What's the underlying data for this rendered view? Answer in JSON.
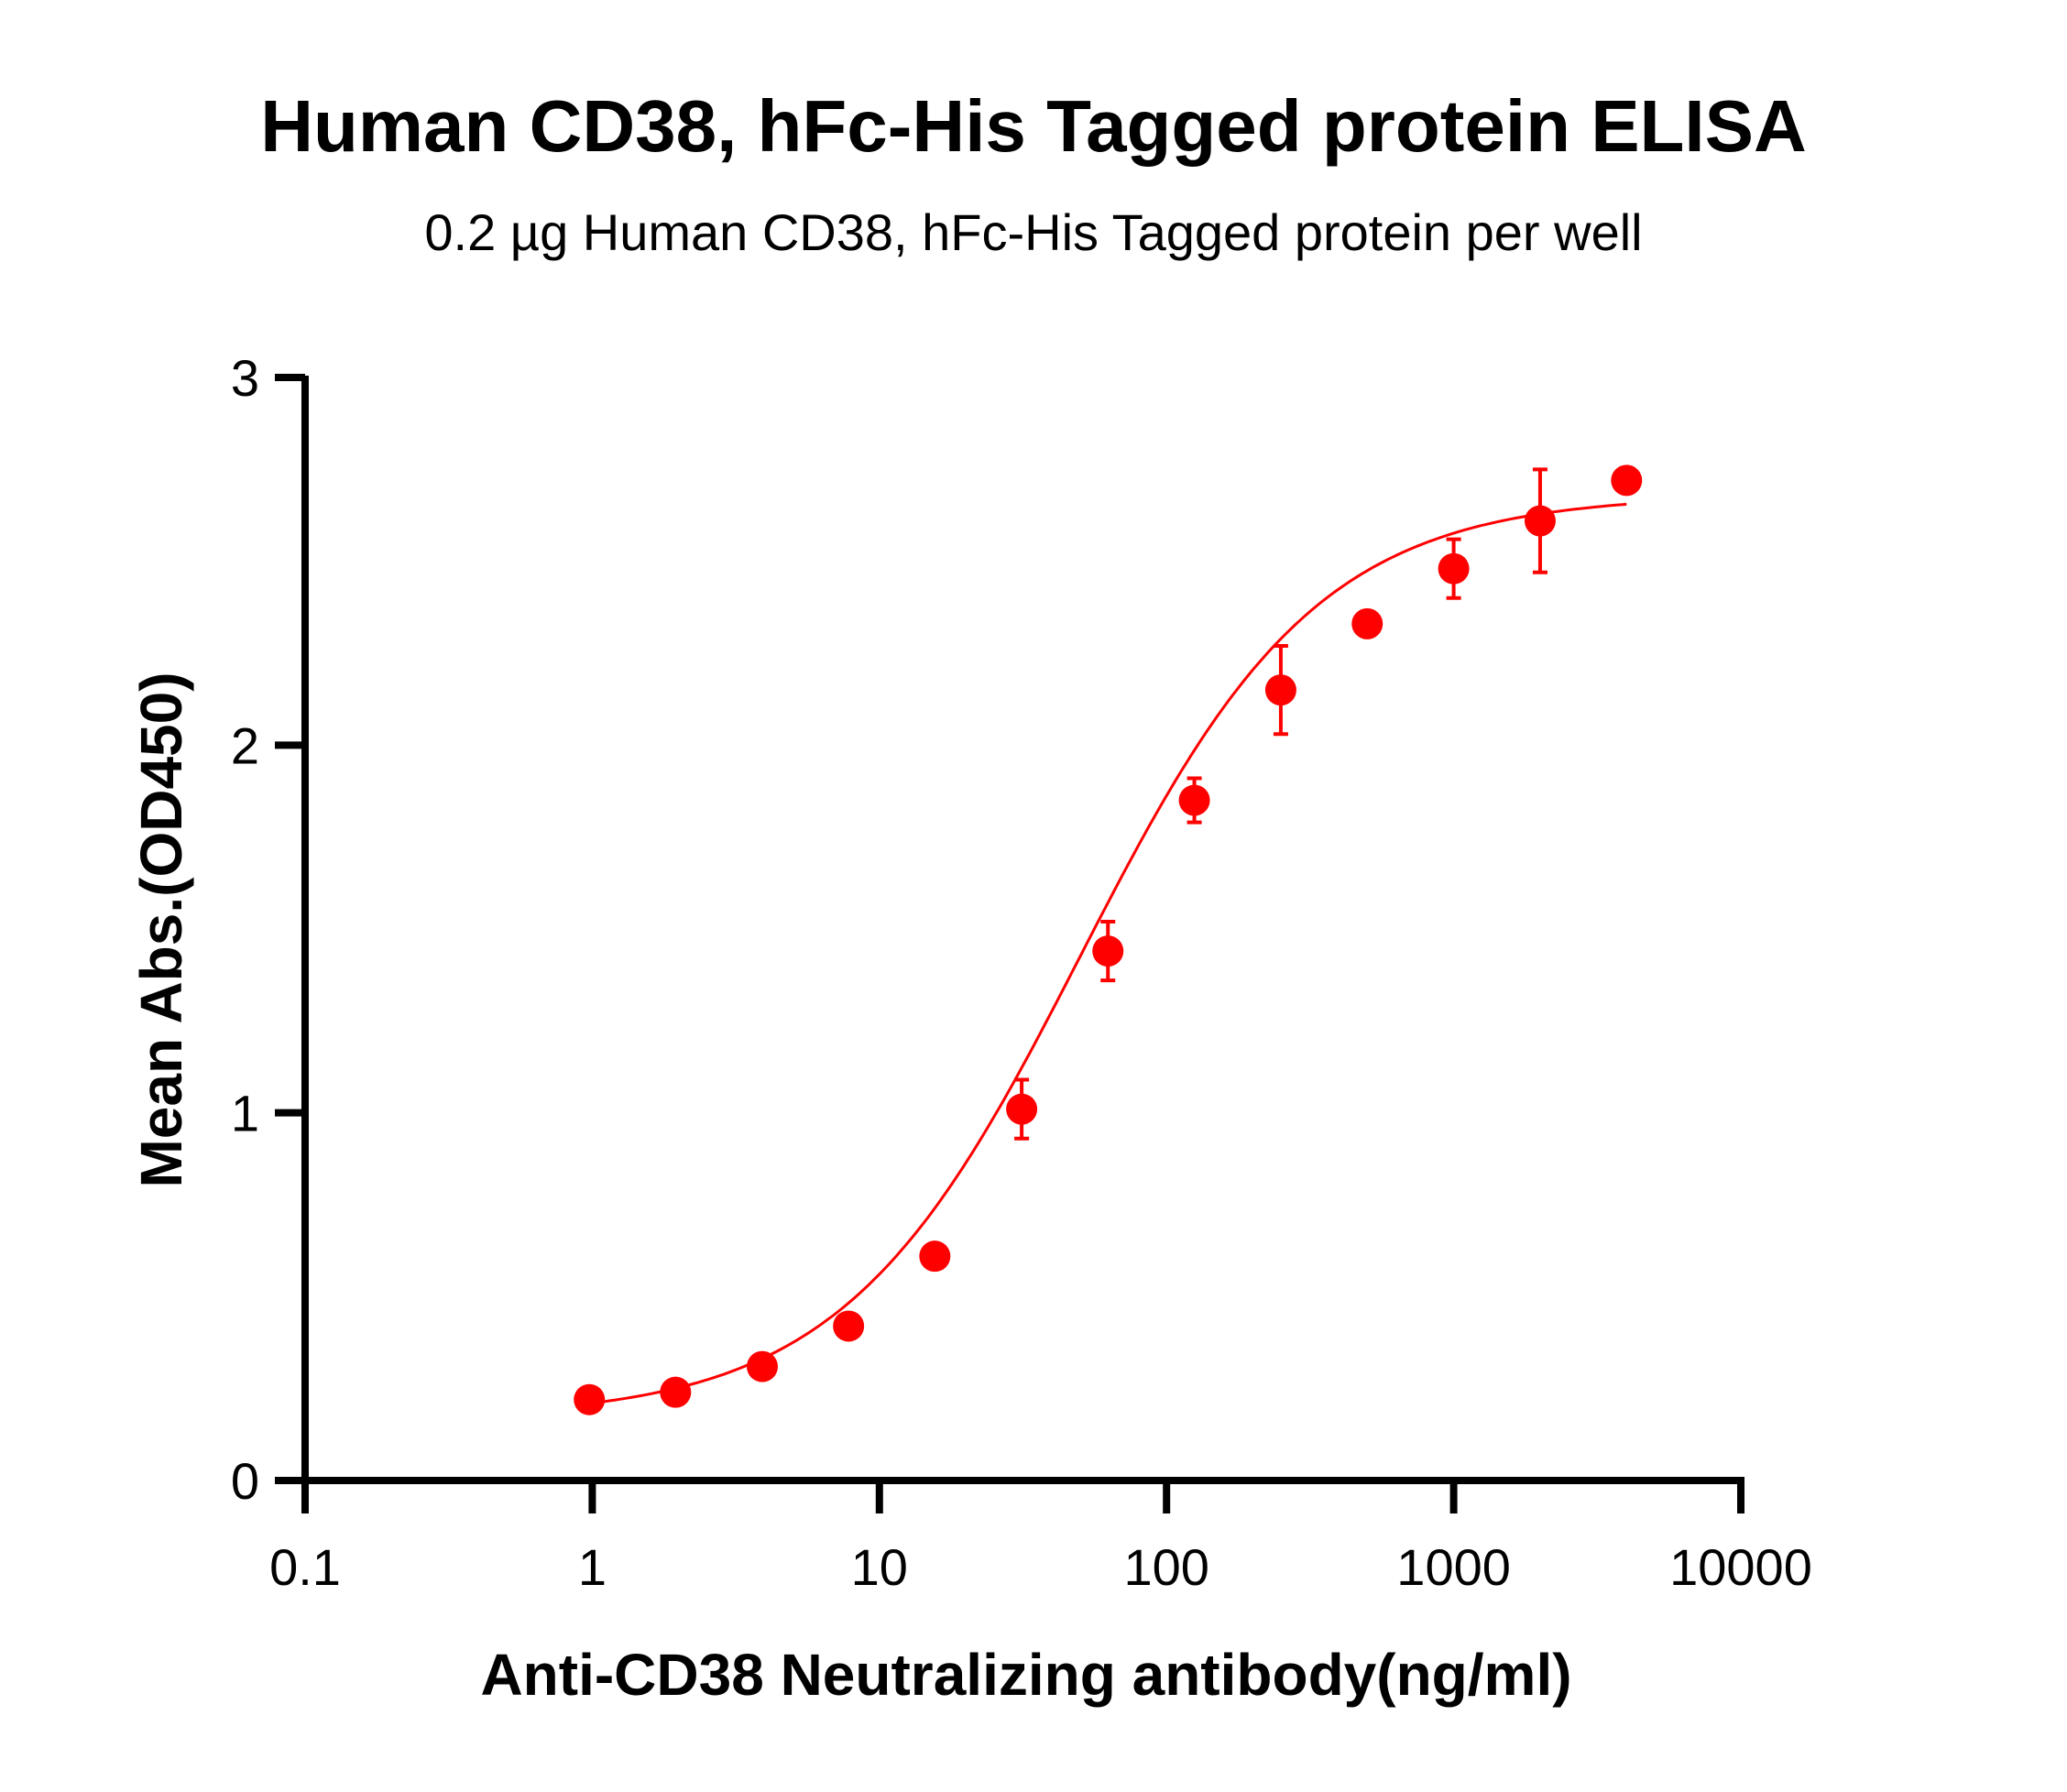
{
  "chart_data": {
    "type": "scatter",
    "title": "Human CD38, hFc-His Tagged protein ELISA",
    "subtitle": "0.2 µg Human CD38, hFc-His Tagged protein per well",
    "xlabel": "Anti-CD38 Neutralizing antibody(ng/ml)",
    "ylabel": "Mean Abs.(OD450)",
    "x_scale": "log",
    "xlim": [
      0.1,
      10000
    ],
    "ylim": [
      0,
      3
    ],
    "x_ticks": [
      "0.1",
      "1",
      "10",
      "100",
      "1000",
      "10000"
    ],
    "y_ticks": [
      "0",
      "1",
      "2",
      "3"
    ],
    "grid": false,
    "color": "#ff0000",
    "series": [
      {
        "x": [
          0.977,
          1.95,
          3.91,
          7.81,
          15.6,
          31.3,
          62.5,
          125,
          250,
          500,
          1000,
          2000,
          4000
        ],
        "y": [
          0.22,
          0.24,
          0.31,
          0.42,
          0.61,
          1.01,
          1.44,
          1.85,
          2.15,
          2.33,
          2.48,
          2.61,
          2.72
        ],
        "error": [
          0,
          0,
          0,
          0,
          0,
          0.08,
          0.08,
          0.06,
          0.12,
          0,
          0.08,
          0.14,
          0
        ],
        "fit": "4PL"
      }
    ]
  }
}
